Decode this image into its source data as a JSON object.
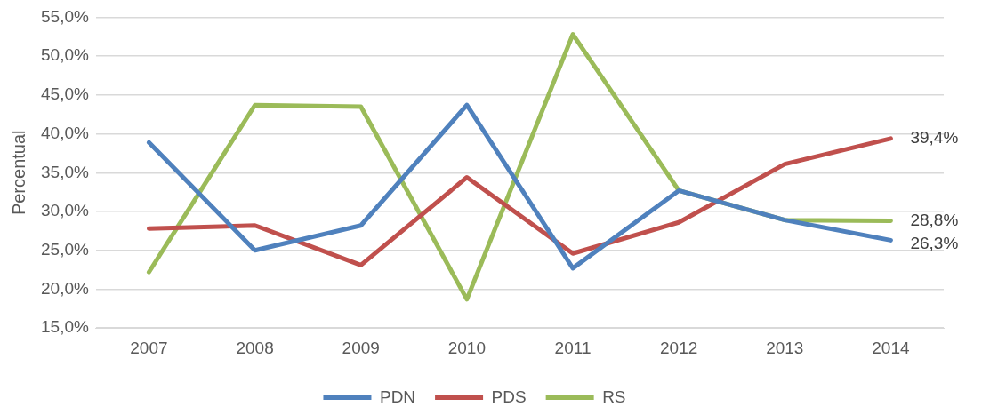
{
  "chart_data": {
    "type": "line",
    "ylabel": "Percentual",
    "categories": [
      "2007",
      "2008",
      "2009",
      "2010",
      "2011",
      "2012",
      "2013",
      "2014"
    ],
    "series": [
      {
        "name": "PDN",
        "color": "#4f81bd",
        "values": [
          38.9,
          25.0,
          28.2,
          43.7,
          22.7,
          32.7,
          28.9,
          26.3
        ],
        "value_labels": [
          null,
          null,
          null,
          null,
          null,
          null,
          null,
          "26,3%"
        ]
      },
      {
        "name": "PDS",
        "color": "#c0504d",
        "values": [
          27.8,
          28.2,
          23.1,
          34.4,
          24.6,
          28.6,
          36.1,
          39.4
        ],
        "value_labels": [
          null,
          null,
          null,
          null,
          null,
          null,
          null,
          "39,4%"
        ]
      },
      {
        "name": "RS",
        "color": "#9bbb59",
        "values": [
          22.2,
          43.7,
          43.5,
          18.7,
          52.8,
          32.7,
          28.9,
          28.8
        ],
        "value_labels": [
          null,
          null,
          null,
          null,
          null,
          null,
          null,
          "28,8%"
        ]
      }
    ],
    "ylim": [
      15,
      55
    ],
    "yticks": [
      {
        "value": 15,
        "label": "15,0%"
      },
      {
        "value": 20,
        "label": "20,0%"
      },
      {
        "value": 25,
        "label": "25,0%"
      },
      {
        "value": 30,
        "label": "30,0%"
      },
      {
        "value": 35,
        "label": "35,0%"
      },
      {
        "value": 40,
        "label": "40,0%"
      },
      {
        "value": 45,
        "label": "45,0%"
      },
      {
        "value": 50,
        "label": "50,0%"
      },
      {
        "value": 55,
        "label": "55,0%"
      }
    ],
    "grid": "y",
    "legend": "bottom",
    "marker": "none",
    "line_style": "solid"
  }
}
